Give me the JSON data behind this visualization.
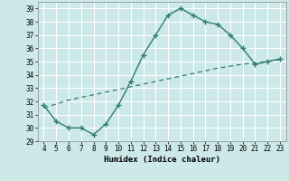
{
  "x": [
    4,
    5,
    6,
    7,
    8,
    9,
    10,
    11,
    12,
    13,
    14,
    15,
    16,
    17,
    18,
    19,
    20,
    21,
    22,
    23
  ],
  "curve": [
    31.7,
    30.5,
    30.0,
    30.0,
    29.5,
    30.3,
    31.7,
    33.5,
    35.5,
    37.0,
    38.5,
    39.0,
    38.5,
    38.0,
    37.8,
    37.0,
    36.0,
    34.8,
    35.0,
    35.2
  ],
  "trend": [
    31.5,
    31.8,
    32.1,
    32.3,
    32.5,
    32.7,
    32.9,
    33.1,
    33.3,
    33.5,
    33.7,
    33.9,
    34.1,
    34.3,
    34.5,
    34.65,
    34.8,
    34.9,
    35.0,
    35.15
  ],
  "line_color": "#2e7d6e",
  "bg_color": "#cce8e8",
  "grid_color": "#ffffff",
  "xlabel": "Humidex (Indice chaleur)",
  "xlim": [
    3.5,
    23.5
  ],
  "ylim": [
    29,
    39.5
  ],
  "yticks": [
    29,
    30,
    31,
    32,
    33,
    34,
    35,
    36,
    37,
    38,
    39
  ],
  "xticks": [
    4,
    5,
    6,
    7,
    8,
    9,
    10,
    11,
    12,
    13,
    14,
    15,
    16,
    17,
    18,
    19,
    20,
    21,
    22,
    23
  ]
}
